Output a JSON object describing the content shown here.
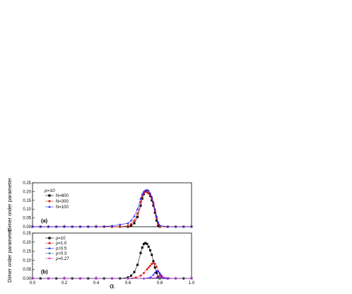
{
  "chart_data": [
    {
      "type": "line",
      "panel_label": "(a)",
      "parameter_label": "ρ=10",
      "ylabel": "Dimer order parameter",
      "xlabel": "",
      "xlim": [
        0.0,
        1.0
      ],
      "ylim": [
        0.0,
        0.25
      ],
      "xticks": [],
      "yticks": [
        "0.00",
        "0.05",
        "0.10",
        "0.15",
        "0.20",
        "0.25"
      ],
      "grid": false,
      "legend_position": "upper-left",
      "series": [
        {
          "name": "N=600",
          "color": "#000000",
          "marker": "square",
          "x": [
            0.0,
            0.05,
            0.1,
            0.15,
            0.2,
            0.25,
            0.3,
            0.35,
            0.4,
            0.45,
            0.5,
            0.55,
            0.6,
            0.62,
            0.64,
            0.66,
            0.68,
            0.69,
            0.7,
            0.71,
            0.72,
            0.73,
            0.74,
            0.75,
            0.76,
            0.77,
            0.78,
            0.79,
            0.8,
            0.85,
            0.9,
            0.95,
            1.0
          ],
          "y": [
            0,
            0,
            0,
            0,
            0,
            0,
            0,
            0,
            0,
            0,
            0,
            0,
            0,
            0.005,
            0.02,
            0.055,
            0.12,
            0.16,
            0.185,
            0.2,
            0.198,
            0.19,
            0.175,
            0.15,
            0.12,
            0.08,
            0.035,
            0.005,
            0,
            0,
            0,
            0,
            0
          ]
        },
        {
          "name": "N=200",
          "color": "#e02020",
          "marker": "circle",
          "x": [
            0.0,
            0.05,
            0.1,
            0.15,
            0.2,
            0.25,
            0.3,
            0.35,
            0.4,
            0.45,
            0.5,
            0.55,
            0.6,
            0.62,
            0.64,
            0.66,
            0.68,
            0.69,
            0.7,
            0.71,
            0.72,
            0.73,
            0.74,
            0.75,
            0.76,
            0.77,
            0.78,
            0.79,
            0.8,
            0.85,
            0.9,
            0.95,
            1.0
          ],
          "y": [
            0,
            0,
            0,
            0,
            0,
            0,
            0,
            0,
            0,
            0,
            0,
            0,
            0.005,
            0.015,
            0.035,
            0.075,
            0.14,
            0.17,
            0.19,
            0.2,
            0.2,
            0.192,
            0.18,
            0.16,
            0.13,
            0.09,
            0.05,
            0.015,
            0.002,
            0,
            0,
            0,
            0
          ]
        },
        {
          "name": "N=100",
          "color": "#1a1aff",
          "marker": "triangle",
          "x": [
            0.0,
            0.05,
            0.1,
            0.15,
            0.2,
            0.25,
            0.3,
            0.35,
            0.4,
            0.45,
            0.5,
            0.55,
            0.6,
            0.62,
            0.64,
            0.66,
            0.68,
            0.69,
            0.7,
            0.71,
            0.72,
            0.73,
            0.74,
            0.75,
            0.76,
            0.77,
            0.78,
            0.79,
            0.8,
            0.85,
            0.9,
            0.95,
            1.0
          ],
          "y": [
            0,
            0,
            0,
            0,
            0,
            0,
            0,
            0,
            0,
            0.002,
            0.005,
            0.012,
            0.02,
            0.035,
            0.06,
            0.1,
            0.16,
            0.185,
            0.2,
            0.207,
            0.21,
            0.205,
            0.19,
            0.17,
            0.14,
            0.1,
            0.06,
            0.025,
            0.008,
            0,
            0,
            0,
            0
          ]
        }
      ]
    },
    {
      "type": "line",
      "panel_label": "(b)",
      "ylabel": "Dimer order parameter",
      "xlabel": "α",
      "xlim": [
        0.0,
        1.0
      ],
      "ylim": [
        0.0,
        0.25
      ],
      "xticks": [
        "0.0",
        "0.2",
        "0.4",
        "0.6",
        "0.8",
        "1.0"
      ],
      "yticks": [
        "0.00",
        "0.05",
        "0.10",
        "0.15",
        "0.20",
        "0.25"
      ],
      "grid": false,
      "legend_position": "upper-left",
      "series": [
        {
          "name": "ρ=10",
          "color": "#000000",
          "marker": "square",
          "x": [
            0.0,
            0.05,
            0.1,
            0.15,
            0.2,
            0.25,
            0.3,
            0.35,
            0.4,
            0.45,
            0.5,
            0.55,
            0.6,
            0.62,
            0.64,
            0.66,
            0.68,
            0.69,
            0.7,
            0.71,
            0.72,
            0.73,
            0.74,
            0.75,
            0.76,
            0.77,
            0.78,
            0.79,
            0.8,
            0.85,
            0.9,
            0.95,
            1.0
          ],
          "y": [
            0,
            0,
            0,
            0,
            0,
            0,
            0,
            0,
            0,
            0,
            0,
            0,
            0.005,
            0.015,
            0.035,
            0.075,
            0.14,
            0.17,
            0.19,
            0.195,
            0.19,
            0.175,
            0.155,
            0.13,
            0.095,
            0.06,
            0.03,
            0.008,
            0,
            0,
            0,
            0,
            0
          ]
        },
        {
          "name": "ρ=1.0",
          "color": "#e02020",
          "marker": "circle",
          "x": [
            0.0,
            0.1,
            0.2,
            0.3,
            0.4,
            0.5,
            0.6,
            0.65,
            0.68,
            0.7,
            0.72,
            0.73,
            0.74,
            0.75,
            0.76,
            0.77,
            0.78,
            0.79,
            0.8,
            0.81,
            0.82,
            0.85,
            0.9,
            1.0
          ],
          "y": [
            0,
            0,
            0,
            0,
            0,
            0,
            0,
            0.005,
            0.015,
            0.03,
            0.05,
            0.06,
            0.07,
            0.08,
            0.085,
            0.08,
            0.065,
            0.04,
            0.02,
            0.008,
            0.002,
            0,
            0,
            0
          ]
        },
        {
          "name": "ρ=0.5",
          "color": "#1a1aff",
          "marker": "triangle",
          "x": [
            0.0,
            0.1,
            0.2,
            0.3,
            0.4,
            0.5,
            0.6,
            0.7,
            0.74,
            0.76,
            0.77,
            0.78,
            0.79,
            0.8,
            0.81,
            0.82,
            0.83,
            0.85,
            0.9,
            1.0
          ],
          "y": [
            0,
            0,
            0,
            0,
            0,
            0,
            0,
            0,
            0.005,
            0.02,
            0.032,
            0.04,
            0.038,
            0.03,
            0.018,
            0.008,
            0.002,
            0,
            0,
            0
          ]
        },
        {
          "name": "ρ=0.3",
          "color": "#1a8c8c",
          "marker": "diamond",
          "x": [
            0.0,
            0.1,
            0.2,
            0.3,
            0.4,
            0.5,
            0.6,
            0.7,
            0.8,
            0.9,
            1.0
          ],
          "y": [
            0,
            0,
            0,
            0,
            0,
            0,
            0,
            0,
            0,
            0,
            0
          ]
        },
        {
          "name": "ρ=0.27",
          "color": "#e020e0",
          "marker": "star",
          "x": [
            0.0,
            0.1,
            0.2,
            0.3,
            0.4,
            0.5,
            0.6,
            0.7,
            0.75,
            0.78,
            0.8,
            0.82,
            0.84,
            0.86,
            0.9,
            1.0
          ],
          "y": [
            0,
            0,
            0,
            0,
            0,
            0,
            0,
            0,
            0.002,
            0.005,
            0.008,
            0.006,
            0.003,
            0.001,
            0,
            0
          ]
        }
      ]
    }
  ]
}
